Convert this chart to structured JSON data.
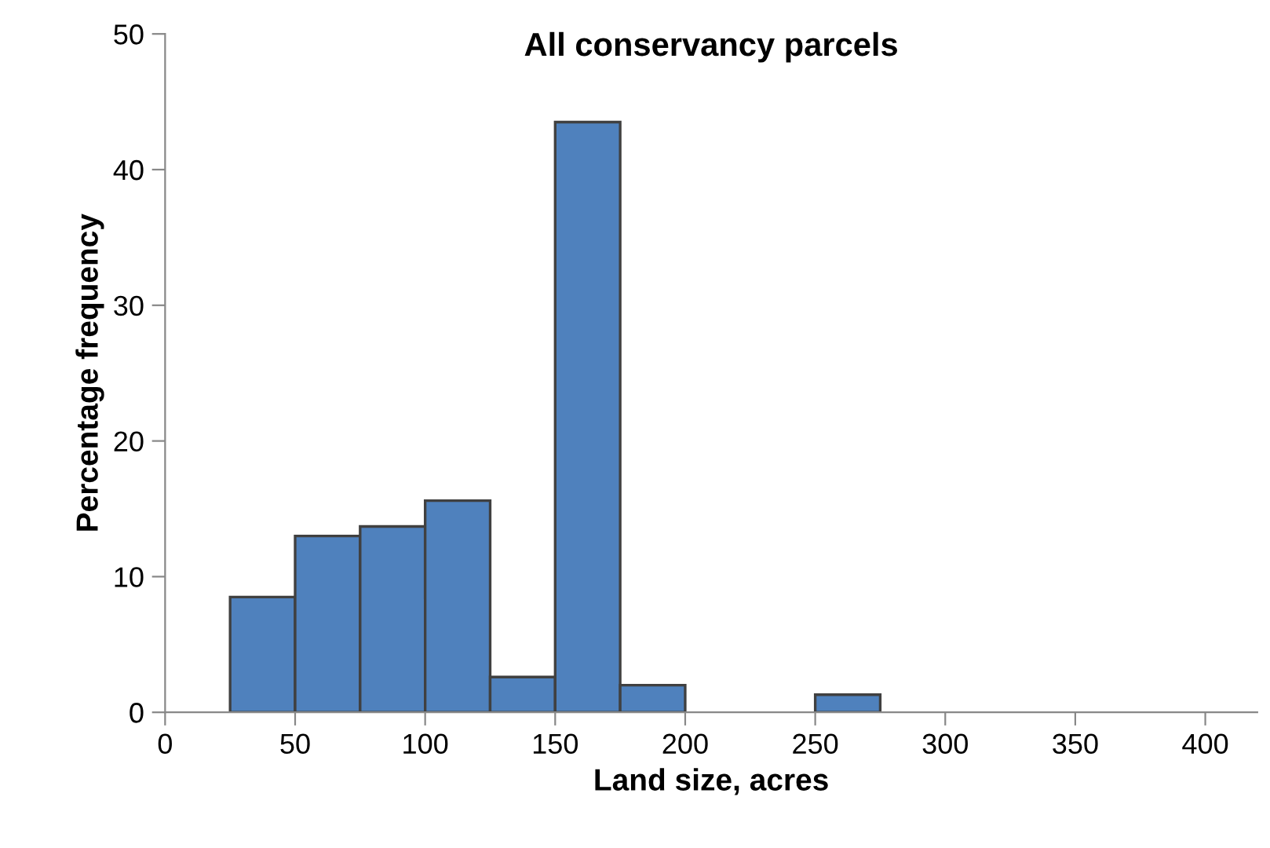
{
  "chart_data": {
    "type": "histogram",
    "title": "All conservancy parcels",
    "xlabel": "Land size, acres",
    "ylabel": "Percentage frequency",
    "bins": [
      25,
      50,
      75,
      100,
      125,
      150,
      175,
      200,
      225,
      250,
      275
    ],
    "values": [
      8.5,
      13.0,
      13.7,
      15.6,
      2.6,
      43.5,
      2.0,
      0,
      0,
      1.3
    ],
    "color": "#4f81bd",
    "xlim": [
      0,
      420
    ],
    "xticks": [
      0,
      50,
      100,
      150,
      200,
      250,
      300,
      350,
      400
    ],
    "ylim": [
      0,
      50
    ],
    "yticks": [
      0,
      10,
      20,
      30,
      40,
      50
    ],
    "grid": false
  }
}
